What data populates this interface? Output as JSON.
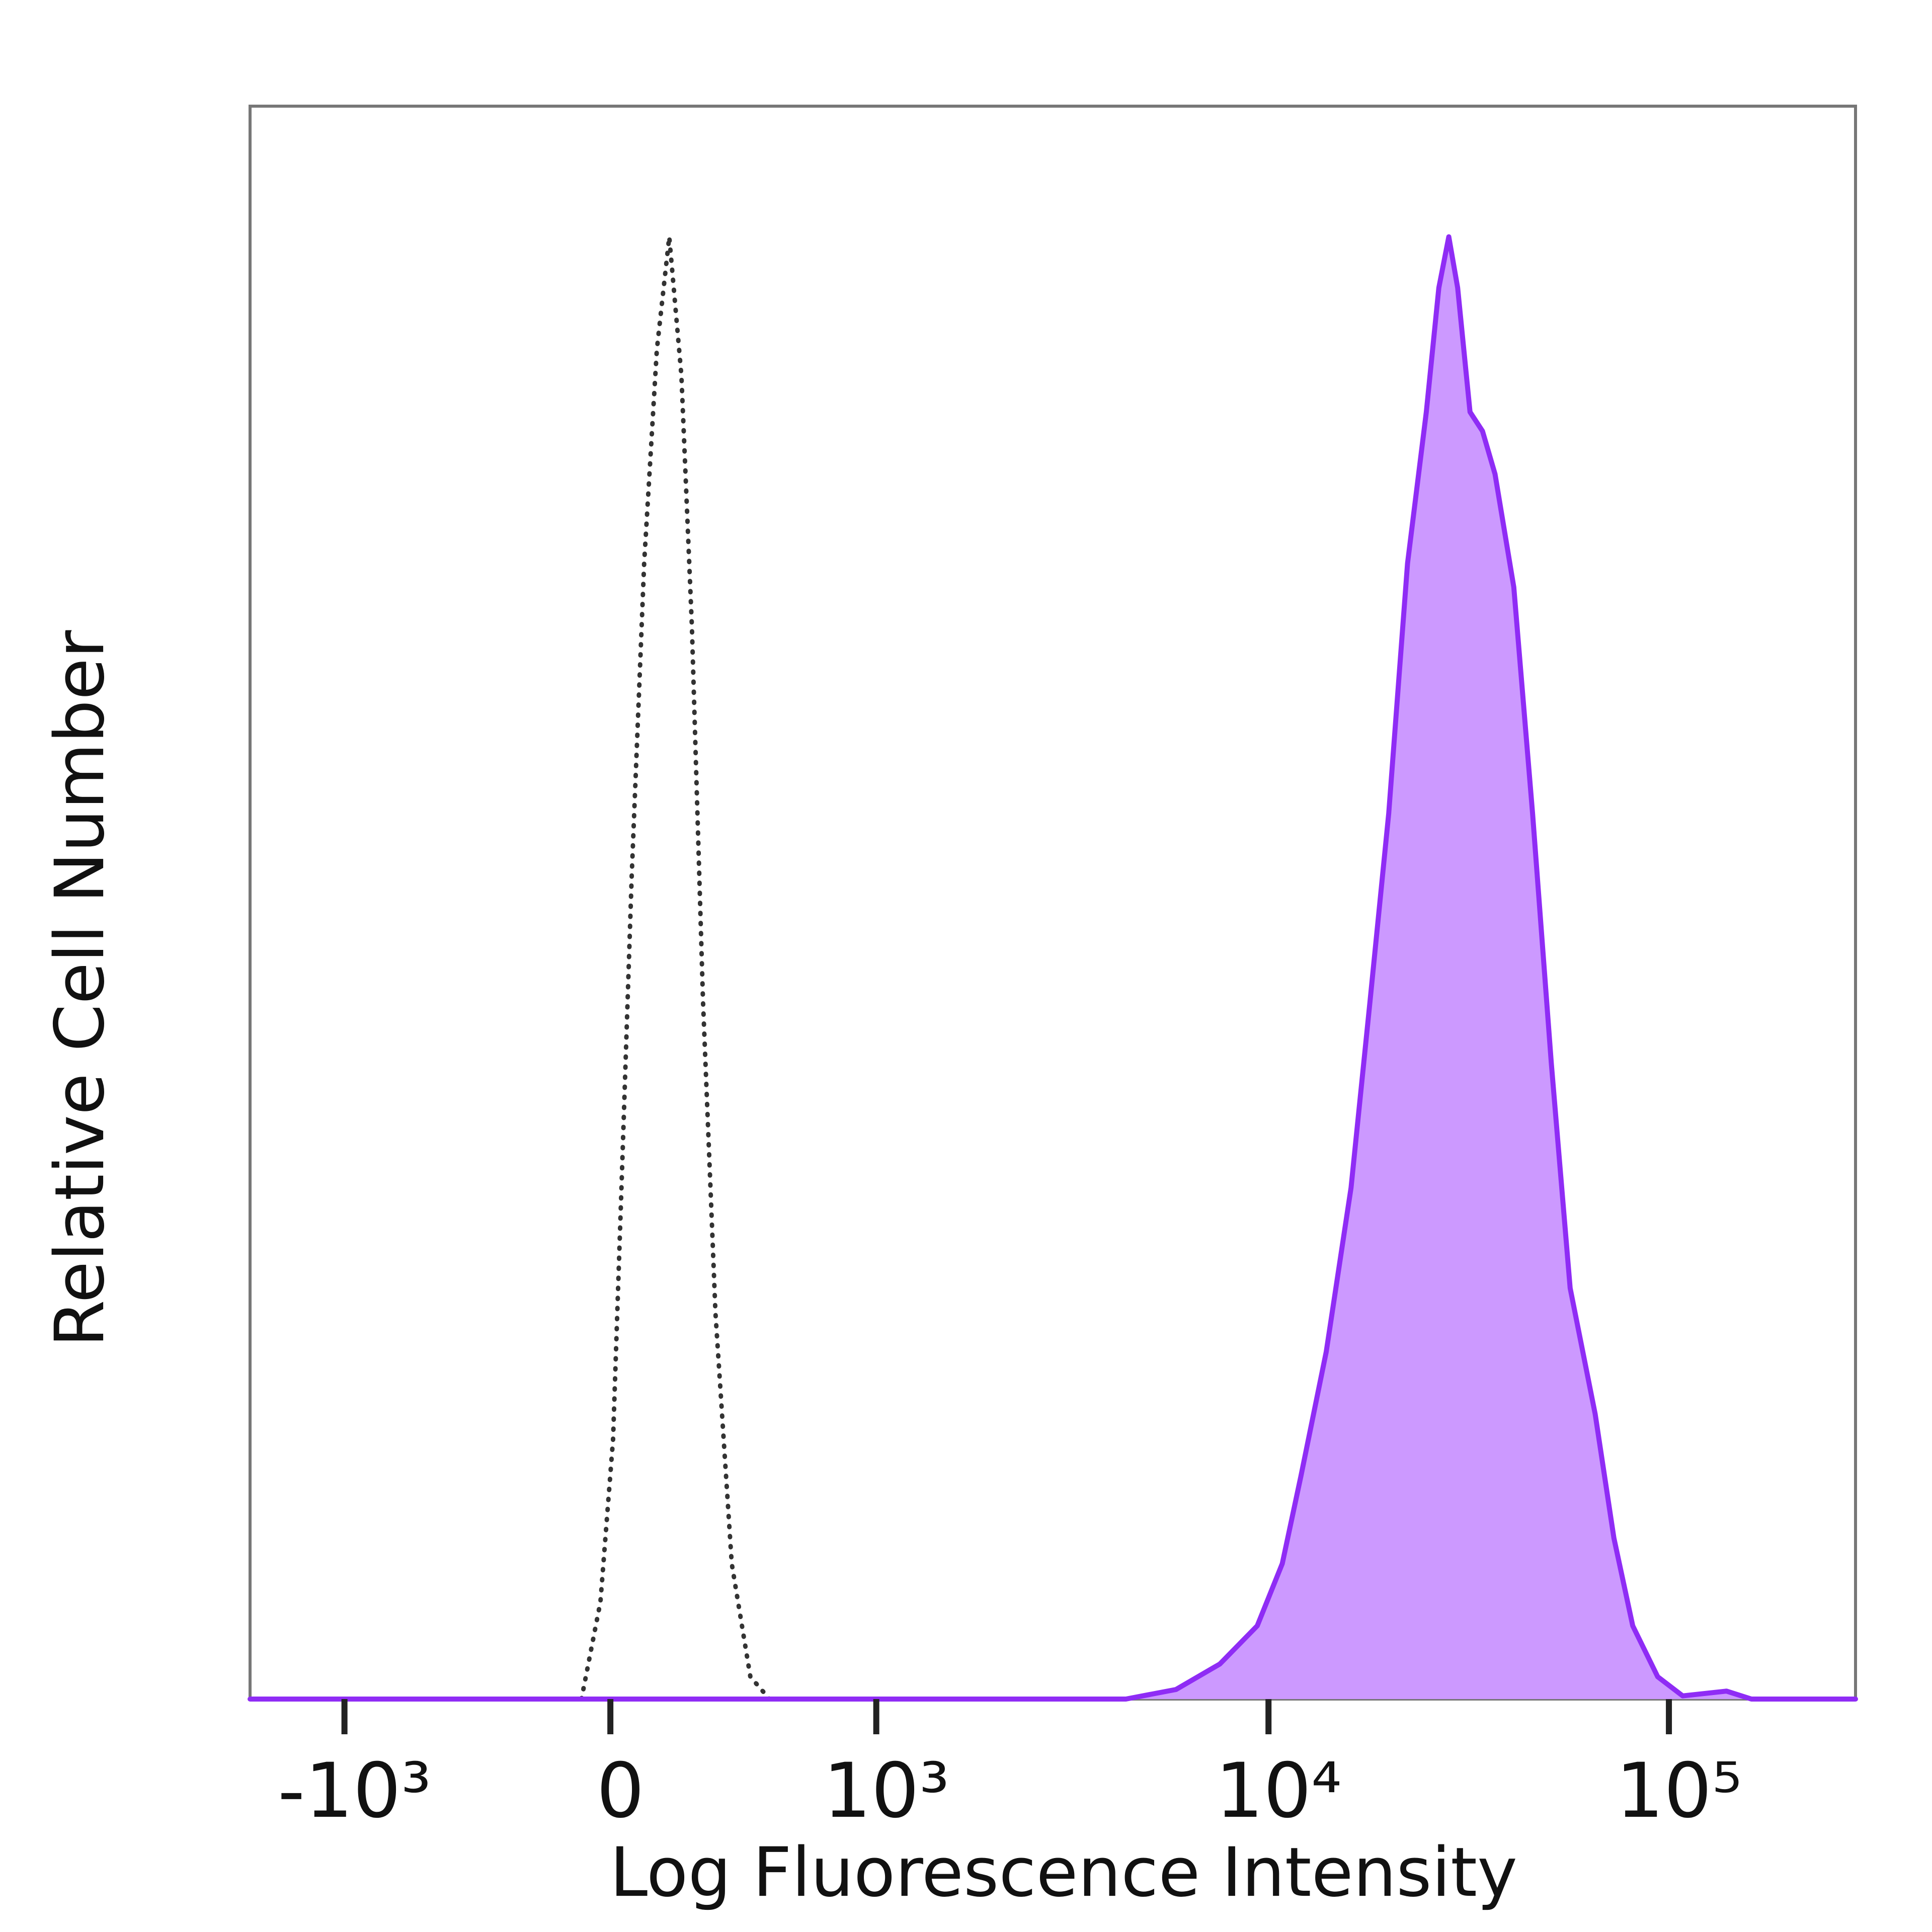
{
  "chart_data": {
    "type": "area",
    "x_label": "Log Fluorescence Intensity",
    "y_label": "Relative Cell Number",
    "xscale": "biexponential",
    "xlim": [
      -1777,
      292400
    ],
    "ylim": [
      0,
      100
    ],
    "xticks": [
      {
        "value": -1000,
        "label": "-10³"
      },
      0,
      {
        "value": 1000,
        "label": "10³"
      },
      {
        "value": 10000,
        "label": "10⁴"
      },
      {
        "value": 100000,
        "label": "10⁵"
      }
    ],
    "series": [
      {
        "color": "#333333",
        "dash": true,
        "filled": false,
        "x": [
          -76,
          -26,
          7,
          29,
          56,
          89,
          123,
          157,
          191,
          221,
          254,
          292,
          344,
          407,
          477
        ],
        "values": [
          0,
          6.1,
          16.3,
          32.1,
          51.7,
          71.3,
          84.7,
          91.8,
          83.1,
          67.4,
          43.8,
          24.2,
          8.5,
          1.4,
          0
        ]
      },
      {
        "color": "#8f2cf5",
        "fill_color": "#cc99ff",
        "dash": false,
        "filled": true,
        "x": [
          -1777,
          4396,
          5870,
          7558,
          9373,
          10825,
          12053,
          13940,
          16080,
          17930,
          19970,
          22250,
          24790,
          26640,
          28210,
          29680,
          31870,
          34240,
          36800,
          41000,
          45670,
          50870,
          56680,
          65450,
          72910,
          81220,
          93770,
          108260,
          139200,
          160700,
          292400
        ],
        "values": [
          0,
          0,
          0.6,
          2.2,
          4.6,
          8.5,
          14.0,
          21.8,
          32.1,
          43.8,
          55.6,
          71.3,
          80.8,
          88.6,
          91.8,
          88.6,
          80.8,
          79.6,
          76.9,
          69.8,
          55.6,
          39.9,
          25.8,
          17.9,
          10.1,
          4.6,
          1.4,
          0.2,
          0.5,
          0,
          0
        ]
      }
    ]
  }
}
